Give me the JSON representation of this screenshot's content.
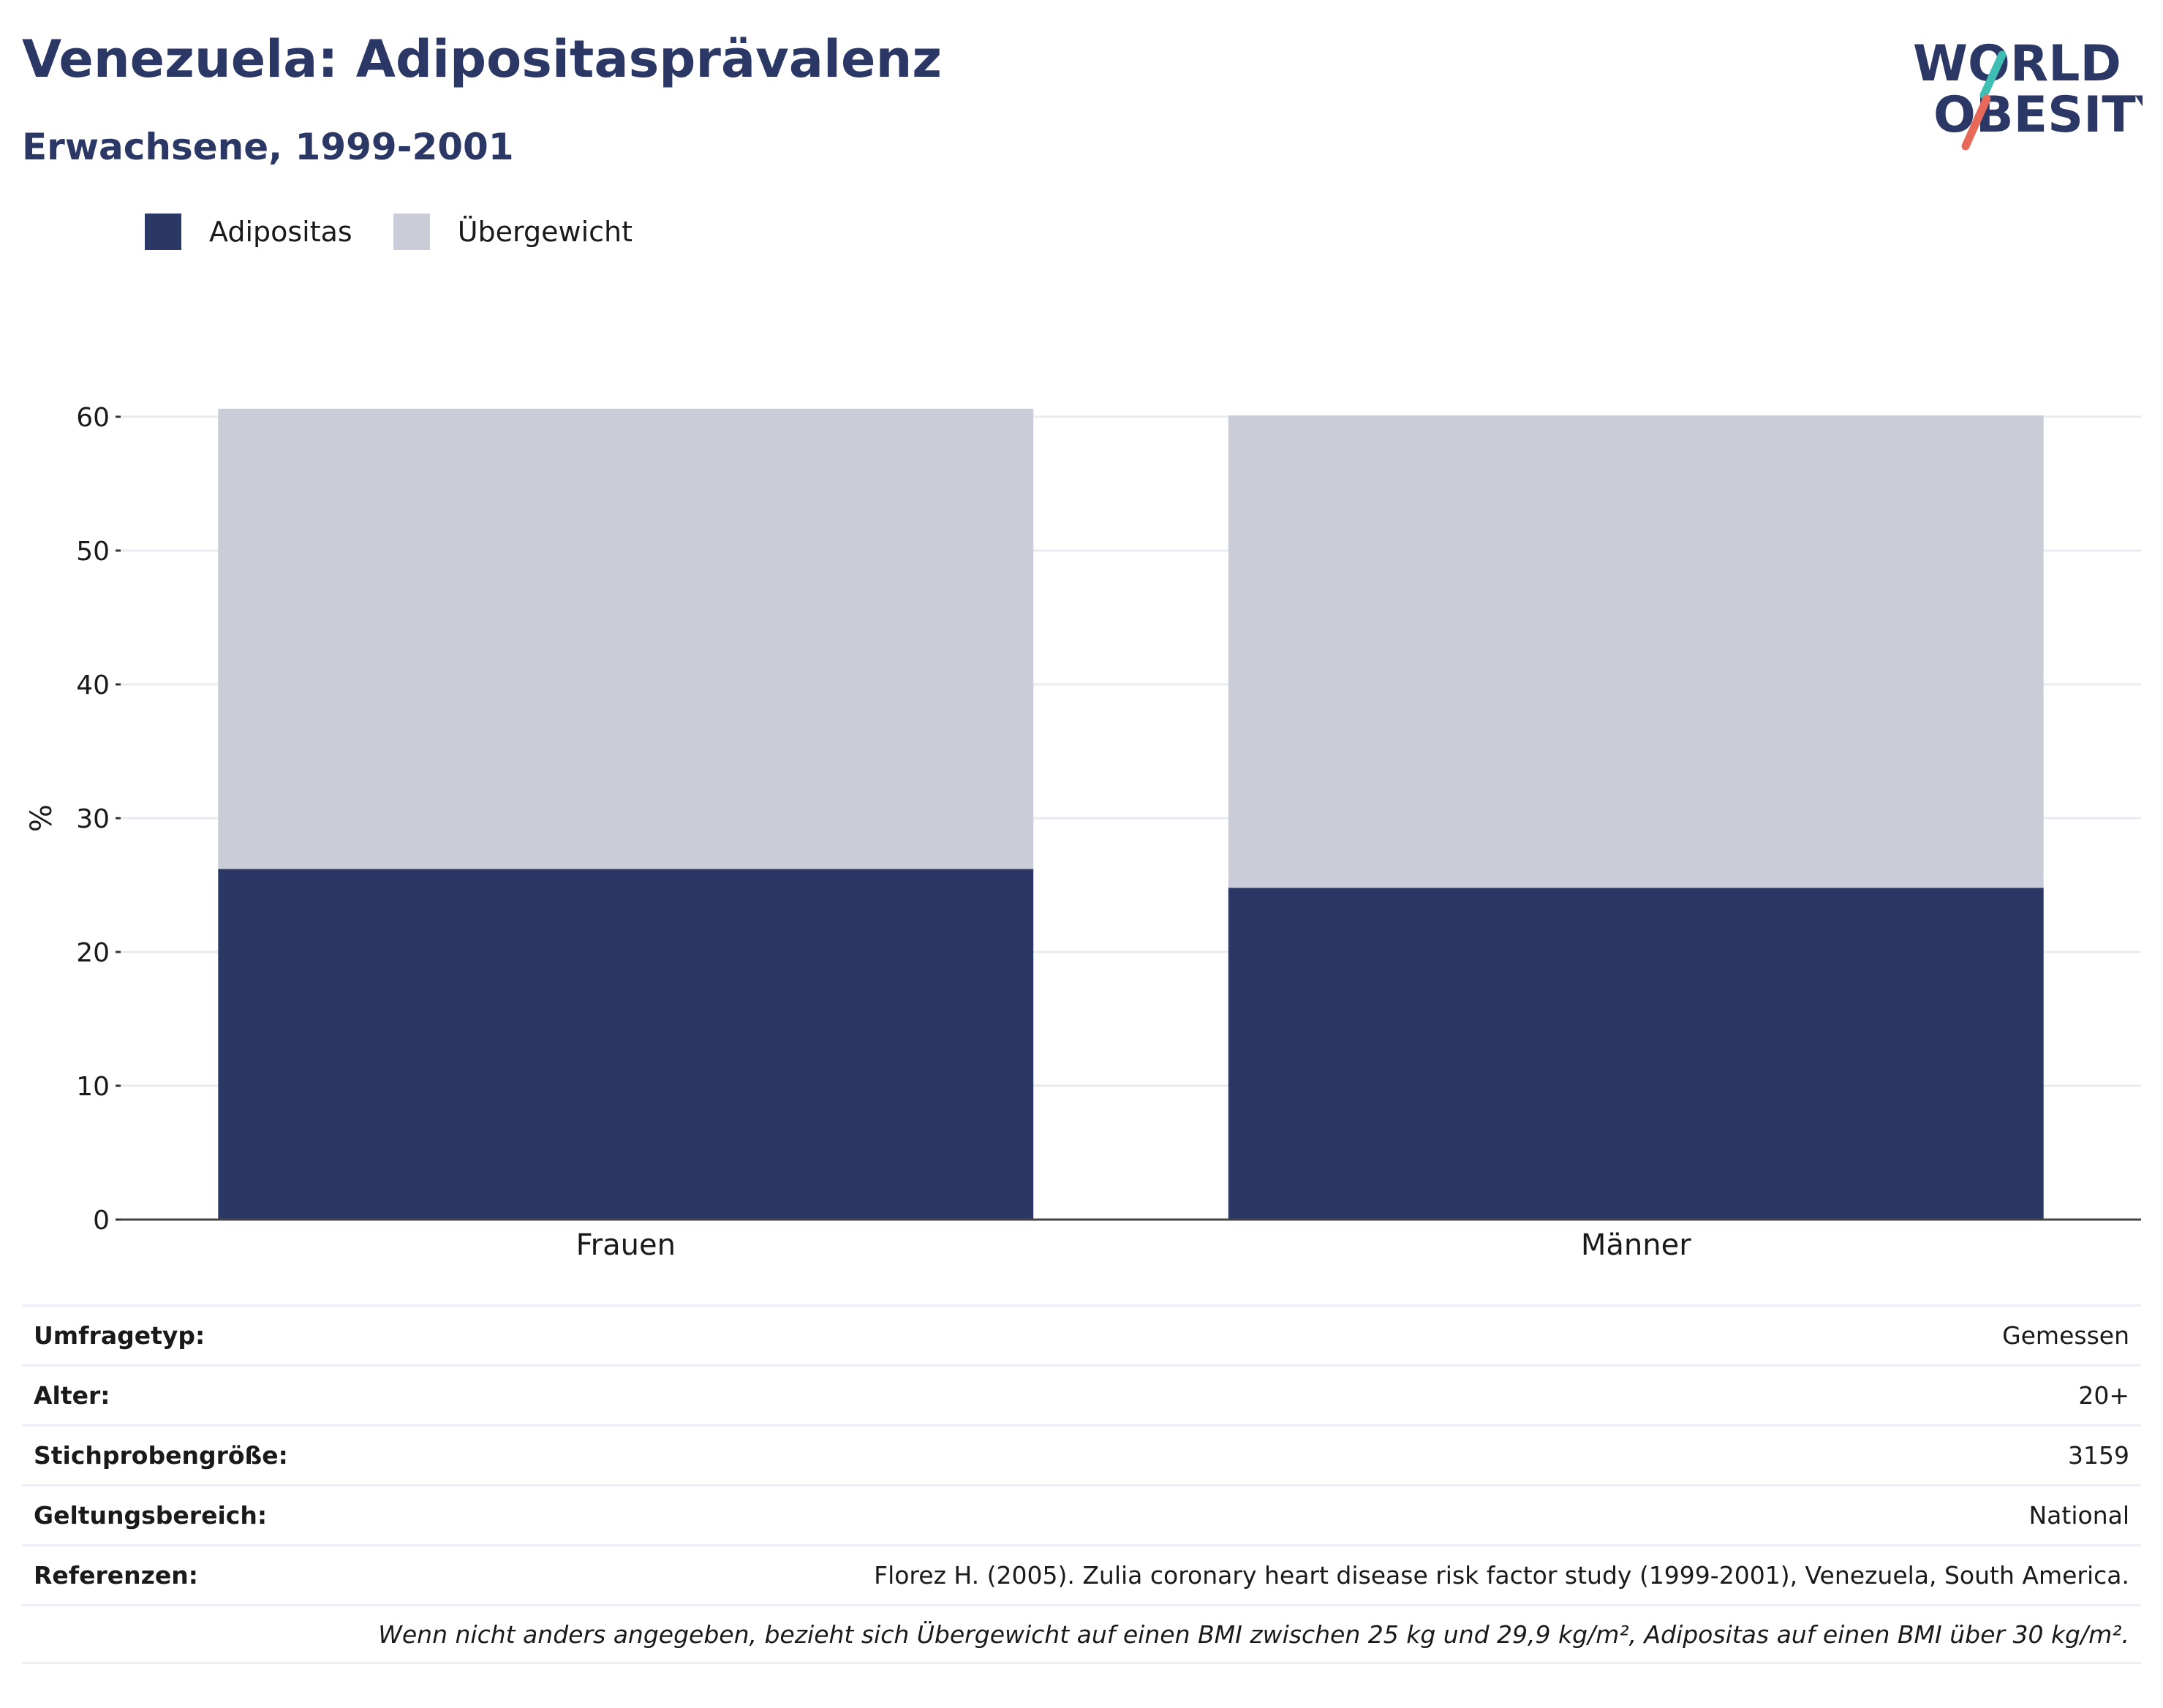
{
  "header": {
    "title": "Venezuela: Adipositasprävalenz",
    "subtitle": "Erwachsene, 1999-2001",
    "logo_text_line1": "WORLD",
    "logo_text_line2": "OBESITY"
  },
  "colors": {
    "accent": "#2b3764",
    "obesity": "#2b3764",
    "overweight": "#cacdd8",
    "logo_teal": "#3fbfb3",
    "logo_coral": "#e8685a"
  },
  "chart_data": {
    "type": "bar",
    "stacked": true,
    "categories": [
      "Frauen",
      "Männer"
    ],
    "series": [
      {
        "name": "Adipositas",
        "values": [
          26.2,
          24.8
        ]
      },
      {
        "name": "Übergewicht",
        "values": [
          34.4,
          35.3
        ]
      }
    ],
    "ylabel": "%",
    "ylim": [
      0,
      60
    ],
    "yticks": [
      0,
      10,
      20,
      30,
      40,
      50,
      60
    ],
    "grid": true,
    "legend_position": "top-left"
  },
  "info_table": {
    "rows": [
      {
        "label": "Umfragetyp:",
        "value": "Gemessen"
      },
      {
        "label": "Alter:",
        "value": "20+"
      },
      {
        "label": "Stichprobengröße:",
        "value": "3159"
      },
      {
        "label": "Geltungsbereich:",
        "value": "National"
      },
      {
        "label": "Referenzen:",
        "value": "Florez H. (2005). Zulia coronary heart disease risk factor study (1999-2001), Venezuela, South America."
      }
    ],
    "note": "Wenn nicht anders angegeben, bezieht sich Übergewicht auf einen BMI zwischen 25 kg und 29,9 kg/m², Adipositas auf einen BMI über 30 kg/m²."
  }
}
